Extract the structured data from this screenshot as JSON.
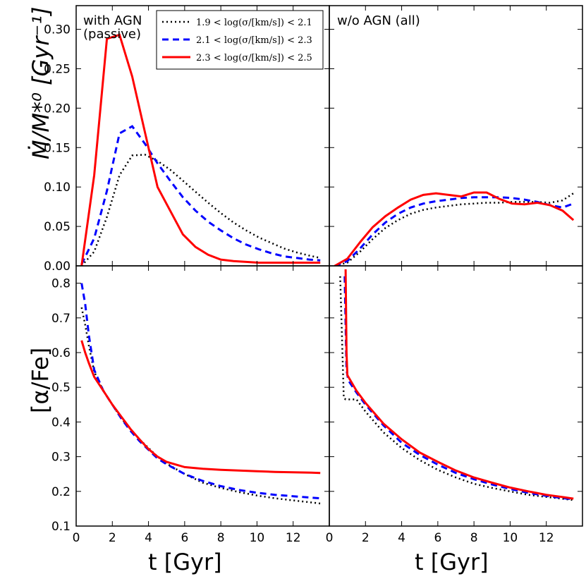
{
  "chart_data": {
    "type": "line",
    "xlabel": "t [Gyr]",
    "ylabel_top": "Ṁ/M*⁰ [Gyr⁻¹]",
    "ylabel_bottom": "[α/Fe]",
    "xlim": [
      0,
      14
    ],
    "xticks": [
      0,
      2,
      4,
      6,
      8,
      10,
      12
    ],
    "xtick_labels": [
      "0",
      "2",
      "4",
      "6",
      "8",
      "10",
      "12"
    ],
    "top_ylim": [
      0,
      0.33
    ],
    "top_yticks": [
      0,
      0.05,
      0.1,
      0.15,
      0.2,
      0.25,
      0.3
    ],
    "top_ytick_labels": [
      "0.00",
      "0.05",
      "0.10",
      "0.15",
      "0.20",
      "0.25",
      "0.30"
    ],
    "bottom_ylim": [
      0.1,
      0.85
    ],
    "bottom_yticks": [
      0.1,
      0.2,
      0.3,
      0.4,
      0.5,
      0.6,
      0.7,
      0.8
    ],
    "bottom_ytick_labels": [
      "0.1",
      "0.2",
      "0.3",
      "0.4",
      "0.5",
      "0.6",
      "0.7",
      "0.8"
    ],
    "legend": [
      {
        "label": "1.9 < log(σ/[km/s]) < 2.1",
        "color": "#000000",
        "style": "dotted"
      },
      {
        "label": "2.1 < log(σ/[km/s]) < 2.3",
        "color": "#0000ff",
        "style": "dashed"
      },
      {
        "label": "2.3 < log(σ/[km/s]) < 2.5",
        "color": "#ff0000",
        "style": "solid"
      }
    ],
    "panels": [
      {
        "id": "top-left",
        "label": "with AGN\n(passive)",
        "series": [
          {
            "name": "1.9-2.1",
            "x": [
              0.3,
              1.0,
              1.7,
              2.4,
              3.1,
              3.8,
              4.5,
              5.2,
              5.9,
              6.6,
              7.3,
              8.0,
              8.7,
              9.4,
              10.1,
              10.8,
              11.5,
              12.2,
              12.9,
              13.5
            ],
            "y": [
              0.0,
              0.018,
              0.062,
              0.115,
              0.14,
              0.141,
              0.133,
              0.122,
              0.108,
              0.094,
              0.08,
              0.067,
              0.055,
              0.045,
              0.036,
              0.029,
              0.022,
              0.017,
              0.013,
              0.01
            ]
          },
          {
            "name": "2.1-2.3",
            "x": [
              0.3,
              1.0,
              1.7,
              2.4,
              3.1,
              3.8,
              4.5,
              5.2,
              5.9,
              6.6,
              7.3,
              8.0,
              8.7,
              9.4,
              10.1,
              10.8,
              11.5,
              12.2,
              12.9,
              13.5
            ],
            "y": [
              0.002,
              0.035,
              0.095,
              0.168,
              0.177,
              0.155,
              0.13,
              0.108,
              0.087,
              0.07,
              0.056,
              0.045,
              0.035,
              0.027,
              0.021,
              0.016,
              0.012,
              0.01,
              0.008,
              0.007
            ]
          },
          {
            "name": "2.3-2.5",
            "x": [
              0.3,
              1.0,
              1.7,
              2.4,
              3.1,
              3.8,
              4.5,
              5.2,
              5.9,
              6.6,
              7.3,
              8.0,
              8.7,
              9.4,
              10.1,
              10.8,
              11.5,
              12.2,
              12.9,
              13.5
            ],
            "y": [
              0.0,
              0.115,
              0.288,
              0.293,
              0.24,
              0.17,
              0.1,
              0.07,
              0.04,
              0.024,
              0.014,
              0.008,
              0.006,
              0.005,
              0.004,
              0.004,
              0.004,
              0.004,
              0.004,
              0.004
            ]
          }
        ]
      },
      {
        "id": "top-right",
        "label": "w/o AGN (all)",
        "series": [
          {
            "name": "1.9-2.1",
            "x": [
              0.3,
              1.0,
              1.7,
              2.4,
              3.1,
              3.8,
              4.5,
              5.2,
              5.9,
              6.6,
              7.3,
              8.0,
              8.7,
              9.4,
              10.1,
              10.8,
              11.5,
              12.2,
              12.9,
              13.5
            ],
            "y": [
              0.0,
              0.004,
              0.018,
              0.034,
              0.048,
              0.058,
              0.066,
              0.071,
              0.074,
              0.076,
              0.078,
              0.079,
              0.08,
              0.08,
              0.081,
              0.081,
              0.081,
              0.08,
              0.083,
              0.092
            ]
          },
          {
            "name": "2.1-2.3",
            "x": [
              0.3,
              1.0,
              1.7,
              2.4,
              3.1,
              3.8,
              4.5,
              5.2,
              5.9,
              6.6,
              7.3,
              8.0,
              8.7,
              9.4,
              10.1,
              10.8,
              11.5,
              12.2,
              12.9,
              13.5
            ],
            "y": [
              0.0,
              0.006,
              0.022,
              0.04,
              0.055,
              0.066,
              0.074,
              0.079,
              0.082,
              0.084,
              0.086,
              0.087,
              0.087,
              0.087,
              0.086,
              0.084,
              0.081,
              0.077,
              0.074,
              0.079
            ]
          },
          {
            "name": "2.3-2.5",
            "x": [
              0.3,
              1.0,
              1.7,
              2.4,
              3.1,
              3.8,
              4.5,
              5.2,
              5.9,
              6.6,
              7.3,
              8.0,
              8.7,
              9.4,
              10.1,
              10.8,
              11.5,
              12.2,
              12.9,
              13.5
            ],
            "y": [
              0.0,
              0.009,
              0.03,
              0.049,
              0.063,
              0.074,
              0.084,
              0.09,
              0.092,
              0.09,
              0.088,
              0.093,
              0.093,
              0.085,
              0.079,
              0.078,
              0.08,
              0.077,
              0.07,
              0.058
            ]
          }
        ]
      },
      {
        "id": "bottom-left",
        "label": "",
        "series": [
          {
            "name": "1.9-2.1",
            "x": [
              0.3,
              0.5,
              0.7,
              1.0,
              1.5,
              2.0,
              2.5,
              3.0,
              3.5,
              4.0,
              4.5,
              5.0,
              6.0,
              7.0,
              8.0,
              9.0,
              10.0,
              11.0,
              12.0,
              13.0,
              13.5
            ],
            "y": [
              0.73,
              0.68,
              0.62,
              0.545,
              0.49,
              0.45,
              0.41,
              0.38,
              0.35,
              0.325,
              0.3,
              0.28,
              0.25,
              0.225,
              0.21,
              0.198,
              0.188,
              0.18,
              0.174,
              0.168,
              0.165
            ]
          },
          {
            "name": "2.1-2.3",
            "x": [
              0.3,
              0.5,
              0.7,
              1.0,
              1.5,
              2.0,
              2.5,
              3.0,
              3.5,
              4.0,
              4.5,
              5.0,
              6.0,
              7.0,
              8.0,
              9.0,
              10.0,
              11.0,
              12.0,
              13.0,
              13.5
            ],
            "y": [
              0.8,
              0.74,
              0.65,
              0.55,
              0.49,
              0.45,
              0.41,
              0.375,
              0.345,
              0.32,
              0.295,
              0.278,
              0.25,
              0.23,
              0.215,
              0.204,
              0.196,
              0.19,
              0.186,
              0.182,
              0.18
            ]
          },
          {
            "name": "2.3-2.5",
            "x": [
              0.3,
              0.5,
              0.7,
              1.0,
              1.5,
              2.0,
              2.5,
              3.0,
              3.5,
              4.0,
              4.5,
              5.0,
              6.0,
              7.0,
              8.0,
              9.0,
              10.0,
              11.0,
              12.0,
              13.0,
              13.5
            ],
            "y": [
              0.635,
              0.6,
              0.57,
              0.53,
              0.49,
              0.45,
              0.415,
              0.38,
              0.35,
              0.322,
              0.3,
              0.285,
              0.27,
              0.265,
              0.262,
              0.26,
              0.258,
              0.256,
              0.255,
              0.254,
              0.253
            ]
          }
        ]
      },
      {
        "id": "bottom-right",
        "label": "",
        "series": [
          {
            "name": "1.9-2.1",
            "x": [
              0.6,
              0.8,
              0.9,
              1.0,
              1.5,
              2.0,
              3.0,
              4.0,
              5.0,
              6.0,
              7.0,
              8.0,
              9.0,
              10.0,
              11.0,
              12.0,
              13.0,
              13.5
            ],
            "y": [
              0.82,
              0.47,
              0.465,
              0.465,
              0.465,
              0.43,
              0.37,
              0.325,
              0.29,
              0.262,
              0.24,
              0.222,
              0.21,
              0.2,
              0.19,
              0.184,
              0.178,
              0.175
            ]
          },
          {
            "name": "2.1-2.3",
            "x": [
              0.85,
              0.95,
              1.05,
              1.5,
              2.0,
              3.0,
              4.0,
              5.0,
              6.0,
              7.0,
              8.0,
              9.0,
              10.0,
              11.0,
              12.0,
              13.0,
              13.5
            ],
            "y": [
              0.82,
              0.55,
              0.52,
              0.485,
              0.45,
              0.39,
              0.34,
              0.305,
              0.277,
              0.253,
              0.235,
              0.22,
              0.207,
              0.196,
              0.187,
              0.18,
              0.177
            ]
          },
          {
            "name": "2.3-2.5",
            "x": [
              0.9,
              0.95,
              1.0,
              1.5,
              2.0,
              3.0,
              4.0,
              5.0,
              6.0,
              7.0,
              8.0,
              9.0,
              10.0,
              11.0,
              12.0,
              13.0,
              13.5
            ],
            "y": [
              0.84,
              0.6,
              0.535,
              0.49,
              0.455,
              0.395,
              0.35,
              0.312,
              0.285,
              0.26,
              0.24,
              0.225,
              0.211,
              0.2,
              0.19,
              0.183,
              0.179
            ]
          }
        ]
      }
    ]
  }
}
